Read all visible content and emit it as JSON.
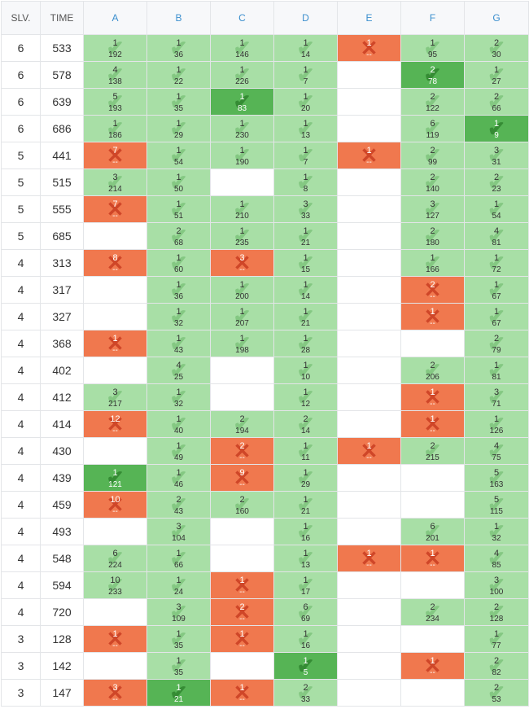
{
  "headers": {
    "solved": "SLV.",
    "time": "TIME",
    "problems": [
      "A",
      "B",
      "C",
      "D",
      "E",
      "F",
      "G"
    ]
  },
  "icons": {
    "accepted": "check-icon",
    "rejected": "cross-icon"
  },
  "colors": {
    "accepted": "#a8dfa6",
    "first_solve": "#56b455",
    "rejected": "#f0784e",
    "header_problem": "#3c8fce"
  },
  "rows": [
    {
      "solved": "6",
      "time": "533",
      "cells": [
        {
          "s": "ok",
          "a": "1",
          "t": "192"
        },
        {
          "s": "ok",
          "a": "1",
          "t": "36"
        },
        {
          "s": "ok",
          "a": "1",
          "t": "146"
        },
        {
          "s": "ok",
          "a": "1",
          "t": "14"
        },
        {
          "s": "fail",
          "a": "1",
          "t": "--"
        },
        {
          "s": "ok",
          "a": "1",
          "t": "95"
        },
        {
          "s": "ok",
          "a": "2",
          "t": "30"
        }
      ]
    },
    {
      "solved": "6",
      "time": "578",
      "cells": [
        {
          "s": "ok",
          "a": "4",
          "t": "138"
        },
        {
          "s": "ok",
          "a": "1",
          "t": "22"
        },
        {
          "s": "ok",
          "a": "1",
          "t": "226"
        },
        {
          "s": "ok",
          "a": "1",
          "t": "7"
        },
        {
          "s": "empty"
        },
        {
          "s": "first",
          "a": "2",
          "t": "78"
        },
        {
          "s": "ok",
          "a": "1",
          "t": "27"
        }
      ]
    },
    {
      "solved": "6",
      "time": "639",
      "cells": [
        {
          "s": "ok",
          "a": "5",
          "t": "193"
        },
        {
          "s": "ok",
          "a": "1",
          "t": "35"
        },
        {
          "s": "first",
          "a": "1",
          "t": "83"
        },
        {
          "s": "ok",
          "a": "1",
          "t": "20"
        },
        {
          "s": "empty"
        },
        {
          "s": "ok",
          "a": "2",
          "t": "122"
        },
        {
          "s": "ok",
          "a": "2",
          "t": "66"
        }
      ]
    },
    {
      "solved": "6",
      "time": "686",
      "cells": [
        {
          "s": "ok",
          "a": "1",
          "t": "186"
        },
        {
          "s": "ok",
          "a": "1",
          "t": "29"
        },
        {
          "s": "ok",
          "a": "1",
          "t": "230"
        },
        {
          "s": "ok",
          "a": "1",
          "t": "13"
        },
        {
          "s": "empty"
        },
        {
          "s": "ok",
          "a": "6",
          "t": "119"
        },
        {
          "s": "first",
          "a": "1",
          "t": "9"
        }
      ]
    },
    {
      "solved": "5",
      "time": "441",
      "cells": [
        {
          "s": "fail",
          "a": "7",
          "t": "--"
        },
        {
          "s": "ok",
          "a": "1",
          "t": "54"
        },
        {
          "s": "ok",
          "a": "1",
          "t": "190"
        },
        {
          "s": "ok",
          "a": "1",
          "t": "7"
        },
        {
          "s": "fail",
          "a": "1",
          "t": "--"
        },
        {
          "s": "ok",
          "a": "2",
          "t": "99"
        },
        {
          "s": "ok",
          "a": "3",
          "t": "31"
        }
      ]
    },
    {
      "solved": "5",
      "time": "515",
      "cells": [
        {
          "s": "ok",
          "a": "3",
          "t": "214"
        },
        {
          "s": "ok",
          "a": "1",
          "t": "50"
        },
        {
          "s": "empty"
        },
        {
          "s": "ok",
          "a": "1",
          "t": "8"
        },
        {
          "s": "empty"
        },
        {
          "s": "ok",
          "a": "2",
          "t": "140"
        },
        {
          "s": "ok",
          "a": "2",
          "t": "23"
        }
      ]
    },
    {
      "solved": "5",
      "time": "555",
      "cells": [
        {
          "s": "fail",
          "a": "7",
          "t": "--"
        },
        {
          "s": "ok",
          "a": "1",
          "t": "51"
        },
        {
          "s": "ok",
          "a": "1",
          "t": "210"
        },
        {
          "s": "ok",
          "a": "3",
          "t": "33"
        },
        {
          "s": "empty"
        },
        {
          "s": "ok",
          "a": "3",
          "t": "127"
        },
        {
          "s": "ok",
          "a": "1",
          "t": "54"
        }
      ]
    },
    {
      "solved": "5",
      "time": "685",
      "cells": [
        {
          "s": "empty"
        },
        {
          "s": "ok",
          "a": "2",
          "t": "68"
        },
        {
          "s": "ok",
          "a": "1",
          "t": "235"
        },
        {
          "s": "ok",
          "a": "1",
          "t": "21"
        },
        {
          "s": "empty"
        },
        {
          "s": "ok",
          "a": "2",
          "t": "180"
        },
        {
          "s": "ok",
          "a": "4",
          "t": "81"
        }
      ]
    },
    {
      "solved": "4",
      "time": "313",
      "cells": [
        {
          "s": "fail",
          "a": "8",
          "t": "--"
        },
        {
          "s": "ok",
          "a": "1",
          "t": "60"
        },
        {
          "s": "fail",
          "a": "3",
          "t": "--"
        },
        {
          "s": "ok",
          "a": "1",
          "t": "15"
        },
        {
          "s": "empty"
        },
        {
          "s": "ok",
          "a": "1",
          "t": "166"
        },
        {
          "s": "ok",
          "a": "1",
          "t": "72"
        }
      ]
    },
    {
      "solved": "4",
      "time": "317",
      "cells": [
        {
          "s": "empty"
        },
        {
          "s": "ok",
          "a": "1",
          "t": "36"
        },
        {
          "s": "ok",
          "a": "1",
          "t": "200"
        },
        {
          "s": "ok",
          "a": "1",
          "t": "14"
        },
        {
          "s": "empty"
        },
        {
          "s": "fail",
          "a": "2",
          "t": "--"
        },
        {
          "s": "ok",
          "a": "1",
          "t": "67"
        }
      ]
    },
    {
      "solved": "4",
      "time": "327",
      "cells": [
        {
          "s": "empty"
        },
        {
          "s": "ok",
          "a": "1",
          "t": "32"
        },
        {
          "s": "ok",
          "a": "1",
          "t": "207"
        },
        {
          "s": "ok",
          "a": "1",
          "t": "21"
        },
        {
          "s": "empty"
        },
        {
          "s": "fail",
          "a": "1",
          "t": "--"
        },
        {
          "s": "ok",
          "a": "1",
          "t": "67"
        }
      ]
    },
    {
      "solved": "4",
      "time": "368",
      "cells": [
        {
          "s": "fail",
          "a": "1",
          "t": "--"
        },
        {
          "s": "ok",
          "a": "1",
          "t": "43"
        },
        {
          "s": "ok",
          "a": "1",
          "t": "198"
        },
        {
          "s": "ok",
          "a": "1",
          "t": "28"
        },
        {
          "s": "empty"
        },
        {
          "s": "empty"
        },
        {
          "s": "ok",
          "a": "2",
          "t": "79"
        }
      ]
    },
    {
      "solved": "4",
      "time": "402",
      "cells": [
        {
          "s": "empty"
        },
        {
          "s": "ok",
          "a": "4",
          "t": "25"
        },
        {
          "s": "empty"
        },
        {
          "s": "ok",
          "a": "1",
          "t": "10"
        },
        {
          "s": "empty"
        },
        {
          "s": "ok",
          "a": "2",
          "t": "206"
        },
        {
          "s": "ok",
          "a": "1",
          "t": "81"
        }
      ]
    },
    {
      "solved": "4",
      "time": "412",
      "cells": [
        {
          "s": "ok",
          "a": "3",
          "t": "217"
        },
        {
          "s": "ok",
          "a": "1",
          "t": "32"
        },
        {
          "s": "empty"
        },
        {
          "s": "ok",
          "a": "1",
          "t": "12"
        },
        {
          "s": "empty"
        },
        {
          "s": "fail",
          "a": "1",
          "t": "--"
        },
        {
          "s": "ok",
          "a": "3",
          "t": "71"
        }
      ]
    },
    {
      "solved": "4",
      "time": "414",
      "cells": [
        {
          "s": "fail",
          "a": "12",
          "t": "--"
        },
        {
          "s": "ok",
          "a": "1",
          "t": "40"
        },
        {
          "s": "ok",
          "a": "2",
          "t": "194"
        },
        {
          "s": "ok",
          "a": "2",
          "t": "14"
        },
        {
          "s": "empty"
        },
        {
          "s": "fail",
          "a": "1",
          "t": "--"
        },
        {
          "s": "ok",
          "a": "1",
          "t": "126"
        }
      ]
    },
    {
      "solved": "4",
      "time": "430",
      "cells": [
        {
          "s": "empty"
        },
        {
          "s": "ok",
          "a": "1",
          "t": "49"
        },
        {
          "s": "fail",
          "a": "2",
          "t": "--"
        },
        {
          "s": "ok",
          "a": "1",
          "t": "11"
        },
        {
          "s": "fail",
          "a": "1",
          "t": "--"
        },
        {
          "s": "ok",
          "a": "2",
          "t": "215"
        },
        {
          "s": "ok",
          "a": "4",
          "t": "75"
        }
      ]
    },
    {
      "solved": "4",
      "time": "439",
      "cells": [
        {
          "s": "first",
          "a": "1",
          "t": "121"
        },
        {
          "s": "ok",
          "a": "1",
          "t": "46"
        },
        {
          "s": "fail",
          "a": "9",
          "t": "--"
        },
        {
          "s": "ok",
          "a": "1",
          "t": "29"
        },
        {
          "s": "empty"
        },
        {
          "s": "empty"
        },
        {
          "s": "ok",
          "a": "5",
          "t": "163"
        }
      ]
    },
    {
      "solved": "4",
      "time": "459",
      "cells": [
        {
          "s": "fail",
          "a": "10",
          "t": "--"
        },
        {
          "s": "ok",
          "a": "2",
          "t": "43"
        },
        {
          "s": "ok",
          "a": "2",
          "t": "160"
        },
        {
          "s": "ok",
          "a": "1",
          "t": "21"
        },
        {
          "s": "empty"
        },
        {
          "s": "empty"
        },
        {
          "s": "ok",
          "a": "5",
          "t": "115"
        }
      ]
    },
    {
      "solved": "4",
      "time": "493",
      "cells": [
        {
          "s": "empty"
        },
        {
          "s": "ok",
          "a": "3",
          "t": "104"
        },
        {
          "s": "empty"
        },
        {
          "s": "ok",
          "a": "1",
          "t": "16"
        },
        {
          "s": "empty"
        },
        {
          "s": "ok",
          "a": "6",
          "t": "201"
        },
        {
          "s": "ok",
          "a": "1",
          "t": "32"
        }
      ]
    },
    {
      "solved": "4",
      "time": "548",
      "cells": [
        {
          "s": "ok",
          "a": "6",
          "t": "224"
        },
        {
          "s": "ok",
          "a": "1",
          "t": "66"
        },
        {
          "s": "empty"
        },
        {
          "s": "ok",
          "a": "1",
          "t": "13"
        },
        {
          "s": "fail",
          "a": "1",
          "t": "--"
        },
        {
          "s": "fail",
          "a": "1",
          "t": "--"
        },
        {
          "s": "ok",
          "a": "4",
          "t": "85"
        }
      ]
    },
    {
      "solved": "4",
      "time": "594",
      "cells": [
        {
          "s": "ok",
          "a": "10",
          "t": "233"
        },
        {
          "s": "ok",
          "a": "1",
          "t": "24"
        },
        {
          "s": "fail",
          "a": "1",
          "t": "--"
        },
        {
          "s": "ok",
          "a": "1",
          "t": "17"
        },
        {
          "s": "empty"
        },
        {
          "s": "empty"
        },
        {
          "s": "ok",
          "a": "3",
          "t": "100"
        }
      ]
    },
    {
      "solved": "4",
      "time": "720",
      "cells": [
        {
          "s": "empty"
        },
        {
          "s": "ok",
          "a": "3",
          "t": "109"
        },
        {
          "s": "fail",
          "a": "2",
          "t": "--"
        },
        {
          "s": "ok",
          "a": "6",
          "t": "69"
        },
        {
          "s": "empty"
        },
        {
          "s": "ok",
          "a": "2",
          "t": "234"
        },
        {
          "s": "ok",
          "a": "2",
          "t": "128"
        }
      ]
    },
    {
      "solved": "3",
      "time": "128",
      "cells": [
        {
          "s": "fail",
          "a": "1",
          "t": "--"
        },
        {
          "s": "ok",
          "a": "1",
          "t": "35"
        },
        {
          "s": "fail",
          "a": "1",
          "t": "--"
        },
        {
          "s": "ok",
          "a": "1",
          "t": "16"
        },
        {
          "s": "empty"
        },
        {
          "s": "empty"
        },
        {
          "s": "ok",
          "a": "1",
          "t": "77"
        }
      ]
    },
    {
      "solved": "3",
      "time": "142",
      "cells": [
        {
          "s": "empty"
        },
        {
          "s": "ok",
          "a": "1",
          "t": "35"
        },
        {
          "s": "empty"
        },
        {
          "s": "first",
          "a": "1",
          "t": "5"
        },
        {
          "s": "empty"
        },
        {
          "s": "fail",
          "a": "1",
          "t": "--"
        },
        {
          "s": "ok",
          "a": "2",
          "t": "82"
        }
      ]
    },
    {
      "solved": "3",
      "time": "147",
      "cells": [
        {
          "s": "fail",
          "a": "3",
          "t": "--"
        },
        {
          "s": "first",
          "a": "1",
          "t": "21"
        },
        {
          "s": "fail",
          "a": "1",
          "t": "--"
        },
        {
          "s": "ok",
          "a": "2",
          "t": "33"
        },
        {
          "s": "empty"
        },
        {
          "s": "empty"
        },
        {
          "s": "ok",
          "a": "2",
          "t": "53"
        }
      ]
    }
  ]
}
